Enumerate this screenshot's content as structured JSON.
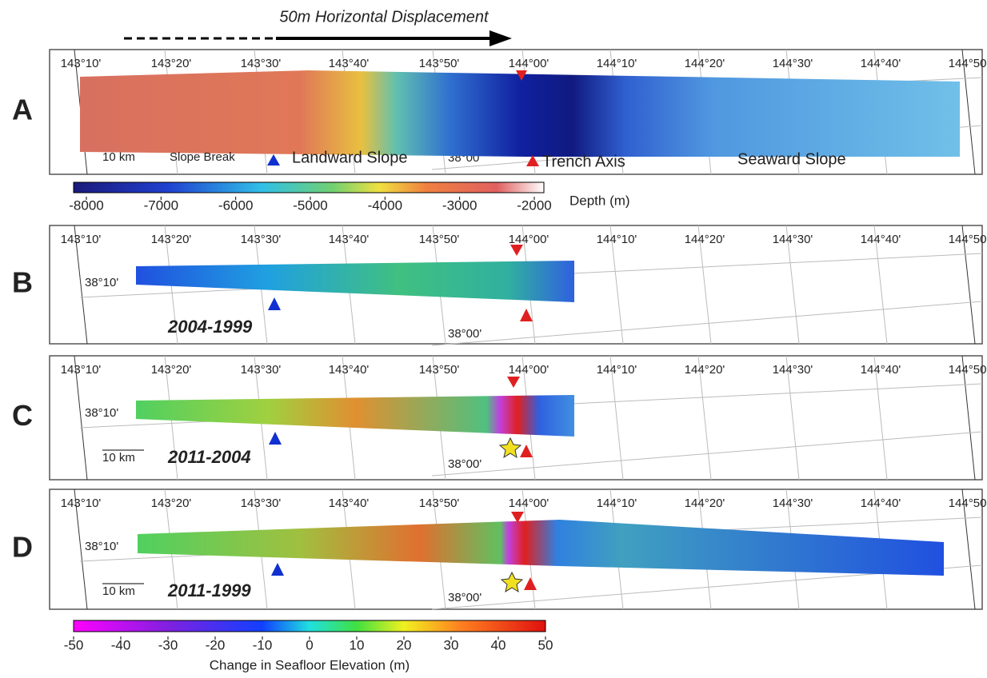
{
  "header": {
    "arrow_label": "50m Horizontal Displacement"
  },
  "longitudes": [
    "143°10'",
    "143°20'",
    "143°30'",
    "143°40'",
    "143°50'",
    "144°00'",
    "144°10'",
    "144°20'",
    "144°30'",
    "144°40'",
    "144°50'"
  ],
  "latitudes": [
    "38°10'",
    "38°00'"
  ],
  "scale_bar": "10 km",
  "panels": [
    {
      "letter": "A",
      "annotations": [
        "Slope Break",
        "Landward Slope",
        "Trench Axis",
        "Seaward Slope"
      ]
    },
    {
      "letter": "B",
      "period": "2004-1999"
    },
    {
      "letter": "C",
      "period": "2011-2004"
    },
    {
      "letter": "D",
      "period": "2011-1999"
    }
  ],
  "depth_colorbar": {
    "ticks": [
      -8000,
      -7000,
      -6000,
      -5000,
      -4000,
      -3000,
      -2000
    ],
    "label": "Depth (m)"
  },
  "change_colorbar": {
    "ticks": [
      -50,
      -40,
      -30,
      -20,
      -10,
      0,
      10,
      20,
      30,
      40,
      50
    ],
    "label": "Change in Seafloor Elevation (m)"
  }
}
